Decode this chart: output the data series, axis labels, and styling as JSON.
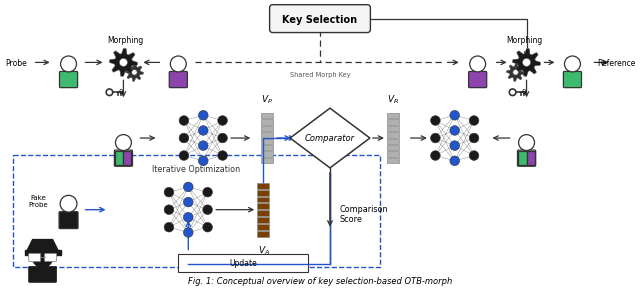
{
  "title": "Fig. 1: Conceptual overview of key selection-based OTB-morph",
  "bg_color": "#ffffff",
  "person_green": "#3dba6e",
  "person_purple": "#8e44ad",
  "person_black": "#1a1a1a",
  "person_head": "#ffffff",
  "person_edge": "#333333",
  "gear_dark": "#1a1a1a",
  "gear_med": "#444444",
  "neural_dark": "#1a1a1a",
  "neural_blue": "#2255cc",
  "vector_gray": "#b0b0b0",
  "vector_brown": "#7B3F00",
  "arrow_dark": "#333333",
  "arrow_blue": "#2255cc",
  "box_fill": "#f5f5f5",
  "box_edge": "#333333",
  "dashed_blue": "#2255cc",
  "key_sel_label": "Key Selection",
  "comparator_label": "Comparator",
  "shared_morph_label": "Shared Morph Key",
  "probe_label": "Probe",
  "reference_label": "Reference",
  "morphing_left_label": "Morphing",
  "morphing_right_label": "Morphing",
  "iterative_label": "Iterative Optimization",
  "fake_probe_label": "Fake\nProbe",
  "comparison_score_label": "Comparison\nScore",
  "update_label": "Update",
  "vp_label": "V_P",
  "vr_label": "V_R",
  "va_label": "V_A"
}
